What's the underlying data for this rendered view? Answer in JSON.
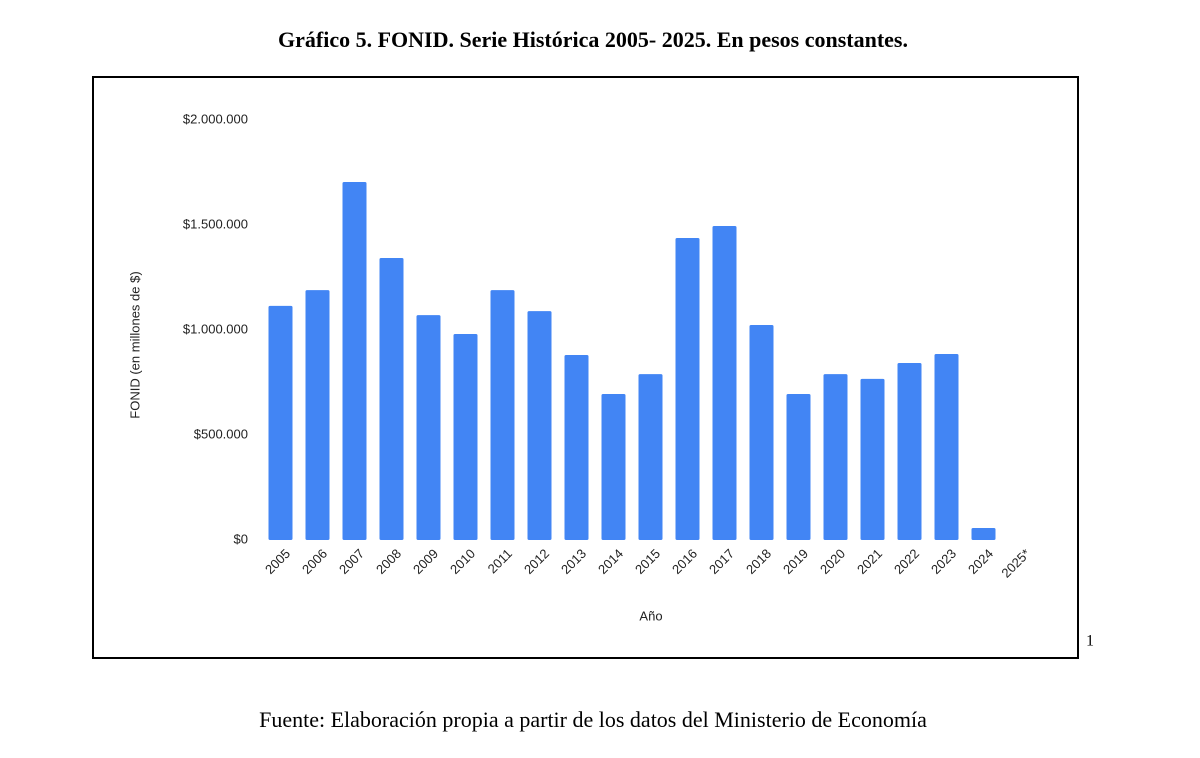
{
  "chart_data": {
    "type": "bar",
    "title": "Gráfico 5. FONID. Serie Histórica 2005- 2025. En pesos constantes.",
    "y_label": "FONID (en millones de $)",
    "x_label": "Año",
    "source": "Fuente: Elaboración propia a partir de los datos del Ministerio de Economía",
    "note_marker": "1",
    "categories": [
      "2005",
      "2006",
      "2007",
      "2008",
      "2009",
      "2010",
      "2011",
      "2012",
      "2013",
      "2014",
      "2015",
      "2016",
      "2017",
      "2018",
      "2019",
      "2020",
      "2021",
      "2022",
      "2023",
      "2024",
      "2025*"
    ],
    "values": [
      1115000,
      1190000,
      1705000,
      1343000,
      1071000,
      981000,
      1190000,
      1090000,
      881000,
      695000,
      790000,
      1438000,
      1495000,
      1024000,
      695000,
      790000,
      767000,
      843000,
      886000,
      57000,
      null
    ],
    "color": "#4285f4",
    "ylim": [
      0,
      2000000
    ],
    "yticks": [
      {
        "value": 0,
        "label": "$0"
      },
      {
        "value": 500000,
        "label": "$500.000"
      },
      {
        "value": 1000000,
        "label": "$1.000.000"
      },
      {
        "value": 1500000,
        "label": "$1.500.000"
      },
      {
        "value": 2000000,
        "label": "$2.000.000"
      }
    ],
    "grid": false
  }
}
